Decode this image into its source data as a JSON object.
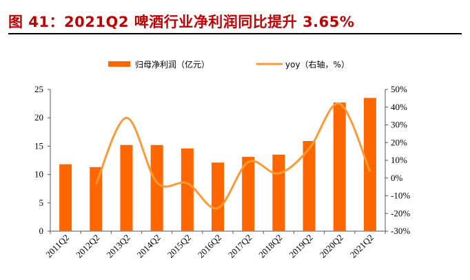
{
  "title": "图 41：2021Q2 啤酒行业净利润同比提升 3.65%",
  "chart_data": {
    "type": "bar+line",
    "categories": [
      "2011Q2",
      "2012Q2",
      "2013Q2",
      "2014Q2",
      "2015Q2",
      "2016Q2",
      "2017Q2",
      "2018Q2",
      "2019Q2",
      "2020Q2",
      "2021Q2"
    ],
    "series": [
      {
        "name": "归母净利润（亿元）",
        "type": "bar",
        "axis": "left",
        "color": "#ff6600",
        "values": [
          11.8,
          11.3,
          15.2,
          15.2,
          14.6,
          12.1,
          13.1,
          13.5,
          15.9,
          22.7,
          23.5
        ]
      },
      {
        "name": "yoy（右轴，%）",
        "type": "line",
        "axis": "right",
        "color": "#ff9933",
        "smooth": true,
        "values": [
          null,
          -3.6,
          34,
          -2.5,
          -3,
          -17,
          9,
          2.6,
          16.5,
          42,
          3.65
        ]
      }
    ],
    "ylim_left": [
      0,
      25
    ],
    "yticks_left": [
      "0",
      "5",
      "10",
      "15",
      "20",
      "25"
    ],
    "ylim_right": [
      -30,
      50
    ],
    "yticks_right": [
      "-30%",
      "-20%",
      "-10%",
      "0%",
      "10%",
      "20%",
      "30%",
      "40%",
      "50%"
    ],
    "legend": "top",
    "grid": false
  }
}
